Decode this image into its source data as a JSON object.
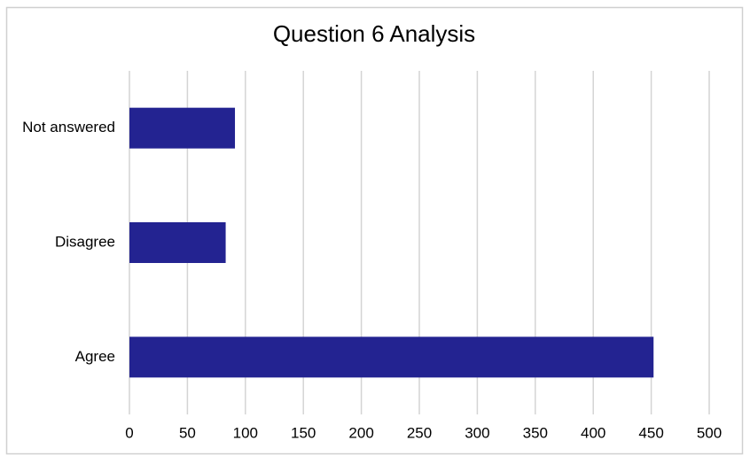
{
  "chart_data": {
    "type": "bar",
    "orientation": "horizontal",
    "title": "Question 6 Analysis",
    "categories": [
      "Not answered",
      "Disagree",
      "Agree"
    ],
    "values": [
      91,
      83,
      452
    ],
    "color": "#232391",
    "xlim": [
      0,
      500
    ],
    "xticks": [
      0,
      50,
      100,
      150,
      200,
      250,
      300,
      350,
      400,
      450,
      500
    ],
    "grid": true
  }
}
